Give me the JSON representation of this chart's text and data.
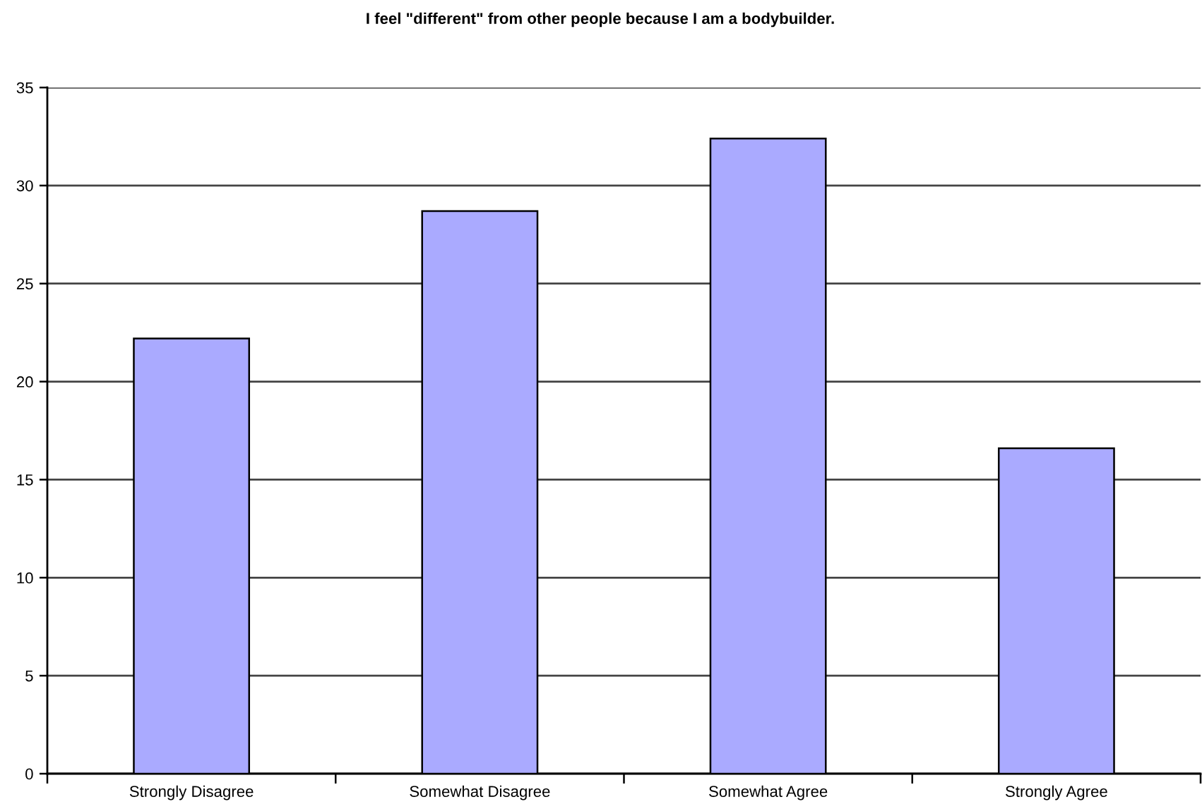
{
  "chart_data": {
    "type": "bar",
    "title": "I feel \"different\" from other people because I am a bodybuilder.",
    "categories": [
      "Strongly Disagree",
      "Somewhat Disagree",
      "Somewhat Agree",
      "Strongly Agree"
    ],
    "values": [
      22.2,
      28.7,
      32.4,
      16.6
    ],
    "color": "#aaaaff",
    "ylim": [
      0,
      35
    ],
    "yticks": [
      0,
      5,
      10,
      15,
      20,
      25,
      30,
      35
    ],
    "grid": "y"
  }
}
